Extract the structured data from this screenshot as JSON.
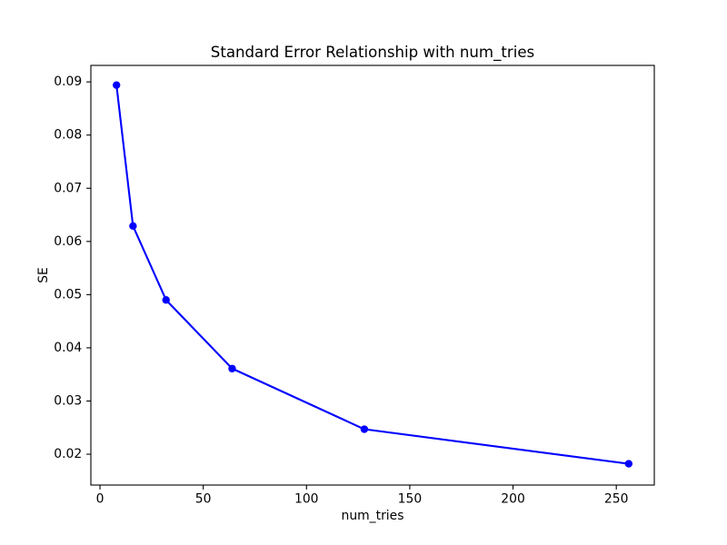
{
  "figure": {
    "background_color": "#ffffff",
    "text_color": "#000000"
  },
  "chart_data": {
    "type": "line",
    "title": "Standard Error Relationship with num_tries",
    "xlabel": "num_tries",
    "ylabel": "SE",
    "x": [
      8,
      16,
      32,
      64,
      128,
      256
    ],
    "y": [
      0.0894,
      0.0629,
      0.049,
      0.0361,
      0.0247,
      0.0182
    ],
    "line_color": "#0000ff",
    "marker": "circle",
    "marker_color": "#0000ff",
    "x_ticks": [
      0,
      50,
      100,
      150,
      200,
      250
    ],
    "y_ticks": [
      0.02,
      0.03,
      0.04,
      0.05,
      0.06,
      0.07,
      0.08,
      0.09
    ],
    "y_tick_decimals": 2,
    "xlim": [
      -4.4,
      268.4
    ],
    "ylim": [
      0.0142,
      0.0931
    ],
    "grid": false,
    "legend_position": "none"
  }
}
